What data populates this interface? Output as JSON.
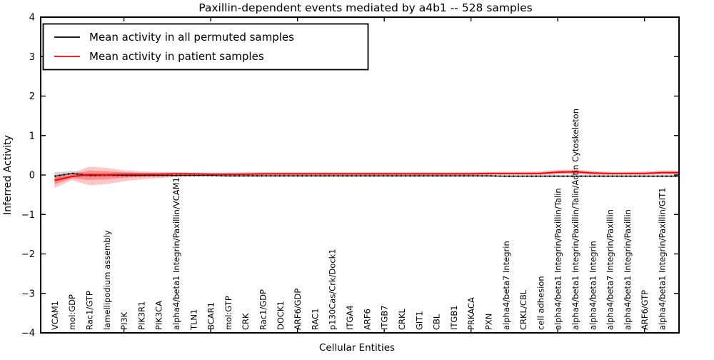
{
  "chart_data": {
    "type": "line",
    "title": "Paxillin-dependent events mediated by a4b1 -- 528 samples",
    "xlabel": "Cellular Entities",
    "ylabel": "Inferred Activity",
    "ylim": [
      -4,
      4
    ],
    "yticks": [
      4,
      3,
      2,
      1,
      0,
      -1,
      -2,
      -3,
      -4
    ],
    "grid": false,
    "legend_position": "upper left",
    "x_major_tick_indices": [
      4,
      9,
      14,
      19,
      24,
      29,
      34
    ],
    "categories": [
      "VCAM1",
      "mol:GDP",
      "Rac1/GTP",
      "lamellipodium assembly",
      "PI3K",
      "PIK3R1",
      "PIK3CA",
      "alpha4/beta1 Integrin/Paxillin/VCAM1",
      "TLN1",
      "BCAR1",
      "mol:GTP",
      "CRK",
      "Rac1/GDP",
      "DOCK1",
      "ARF6/GDP",
      "RAC1",
      "p130Cas/Crk/Dock1",
      "ITGA4",
      "ARF6",
      "ITGB7",
      "CRKL",
      "GIT1",
      "CBL",
      "ITGB1",
      "PRKACA",
      "PXN",
      "alpha4/beta7 Integrin",
      "CRKL/CBL",
      "cell adhesion",
      "alpha4/beta1 Integrin/Paxillin/Talin",
      "alpha4/beta1 Integrin/Paxillin/Talin/Actin Cytoskeleton",
      "alpha4/beta1 Integrin",
      "alpha4/beta7 Integrin/Paxillin",
      "alpha4/beta1 Integrin/Paxillin",
      "ARF6/GTP",
      "alpha4/beta1 Integrin/Paxillin/GIT1"
    ],
    "series": [
      {
        "name": "Mean activity in all permuted samples",
        "color": "#000000",
        "band_color": "#888888",
        "values": [
          -0.03,
          0.04,
          -0.01,
          0.0,
          -0.01,
          -0.01,
          -0.01,
          -0.01,
          -0.01,
          -0.01,
          -0.02,
          -0.02,
          -0.02,
          -0.02,
          -0.02,
          -0.02,
          -0.02,
          -0.02,
          -0.02,
          -0.02,
          -0.02,
          -0.02,
          -0.02,
          -0.02,
          -0.02,
          -0.02,
          -0.03,
          -0.03,
          -0.03,
          -0.03,
          -0.03,
          -0.03,
          -0.03,
          -0.03,
          -0.03,
          -0.03
        ],
        "band_upper": [
          0.07,
          0.1,
          0.04,
          0.03,
          0.02,
          0.02,
          0.02,
          0.02,
          0.02,
          0.02,
          0.01,
          0.01,
          0.01,
          0.01,
          0.01,
          0.01,
          0.01,
          0.01,
          0.01,
          0.01,
          0.01,
          0.01,
          0.01,
          0.01,
          0.01,
          0.01,
          0.0,
          0.0,
          0.0,
          0.0,
          0.0,
          0.0,
          0.0,
          0.0,
          0.0,
          0.0
        ],
        "band_lower": [
          -0.13,
          -0.02,
          -0.06,
          -0.05,
          -0.04,
          -0.04,
          -0.04,
          -0.04,
          -0.04,
          -0.04,
          -0.05,
          -0.05,
          -0.05,
          -0.05,
          -0.05,
          -0.05,
          -0.05,
          -0.05,
          -0.05,
          -0.05,
          -0.05,
          -0.05,
          -0.05,
          -0.05,
          -0.05,
          -0.05,
          -0.06,
          -0.06,
          -0.06,
          -0.06,
          -0.06,
          -0.06,
          -0.06,
          -0.06,
          -0.06,
          -0.06
        ]
      },
      {
        "name": "Mean activity in patient samples",
        "color": "#ff0000",
        "band_color": "#ff0000",
        "values": [
          -0.14,
          -0.04,
          0.01,
          0.01,
          0.02,
          0.02,
          0.02,
          0.03,
          0.03,
          0.02,
          0.02,
          0.02,
          0.03,
          0.03,
          0.03,
          0.03,
          0.03,
          0.03,
          0.03,
          0.03,
          0.03,
          0.03,
          0.03,
          0.03,
          0.03,
          0.04,
          0.04,
          0.04,
          0.04,
          0.07,
          0.08,
          0.05,
          0.04,
          0.04,
          0.04,
          0.06
        ],
        "band_upper": [
          0.0,
          0.05,
          0.21,
          0.18,
          0.12,
          0.09,
          0.08,
          0.07,
          0.06,
          0.06,
          0.06,
          0.07,
          0.07,
          0.07,
          0.07,
          0.07,
          0.07,
          0.07,
          0.07,
          0.07,
          0.07,
          0.07,
          0.07,
          0.07,
          0.07,
          0.08,
          0.08,
          0.08,
          0.09,
          0.13,
          0.14,
          0.1,
          0.08,
          0.08,
          0.09,
          0.11
        ],
        "band_lower": [
          -0.33,
          -0.13,
          -0.26,
          -0.23,
          -0.16,
          -0.11,
          -0.08,
          -0.05,
          -0.03,
          -0.02,
          -0.01,
          -0.01,
          -0.01,
          -0.01,
          -0.01,
          -0.01,
          -0.01,
          -0.01,
          -0.01,
          -0.01,
          -0.01,
          -0.01,
          -0.01,
          -0.01,
          -0.01,
          0.0,
          0.0,
          0.0,
          0.0,
          0.01,
          0.02,
          0.0,
          0.0,
          0.0,
          0.0,
          0.01
        ]
      }
    ],
    "legend": [
      {
        "label": "Mean activity in all permuted samples",
        "color": "#000000"
      },
      {
        "label": "Mean activity in patient samples",
        "color": "#ff0000"
      }
    ]
  }
}
